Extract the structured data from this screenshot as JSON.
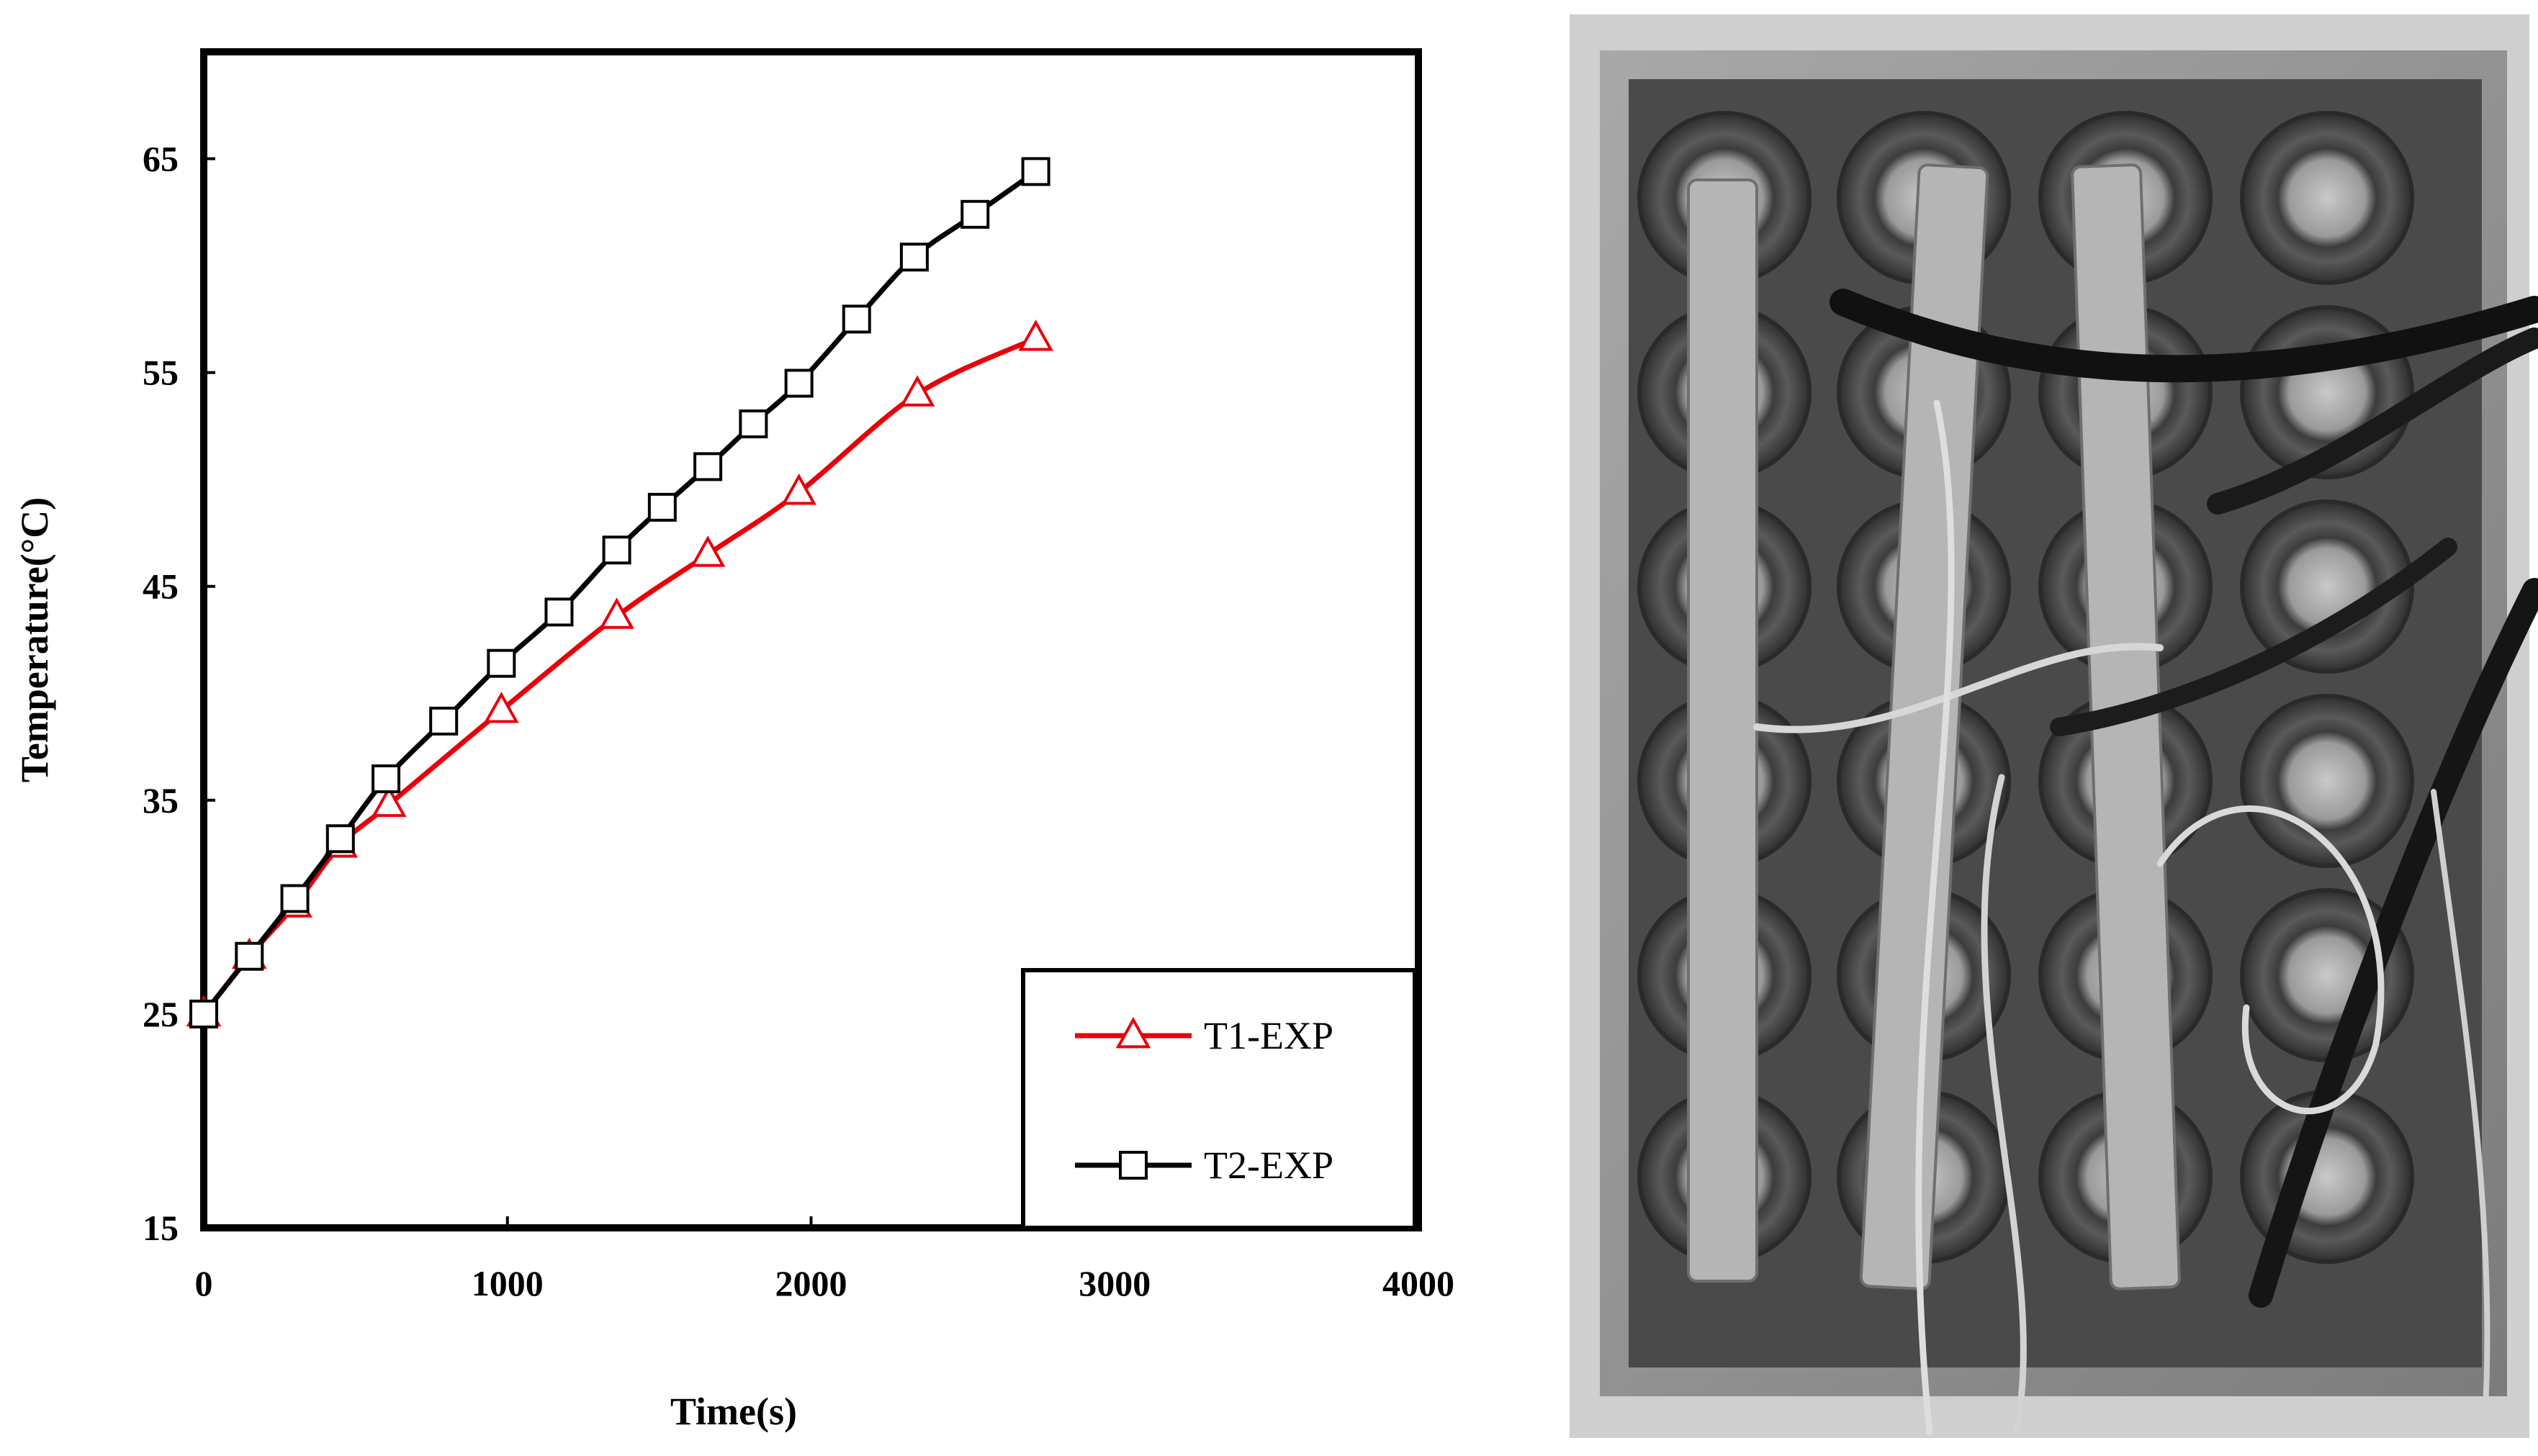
{
  "chart_data": {
    "type": "line",
    "title": "",
    "xlabel": "Time(s)",
    "ylabel": "Temperature(°C)",
    "xlim": [
      0,
      4000
    ],
    "ylim": [
      15,
      70
    ],
    "xticks": [
      0,
      1000,
      2000,
      3000,
      4000
    ],
    "xtick_labels": [
      "0",
      "1000",
      "2000",
      "3000",
      "4000"
    ],
    "yticks": [
      15,
      25,
      35,
      45,
      55,
      65
    ],
    "ytick_labels": [
      "15",
      "25",
      "35",
      "45",
      "55",
      "65"
    ],
    "grid": false,
    "legend_position": "bottom-right",
    "series": [
      {
        "name": "T1-EXP",
        "color": "#e8000b",
        "marker": "triangle-open",
        "x": [
          0,
          150,
          300,
          450,
          610,
          980,
          1360,
          1660,
          1960,
          2350,
          2740
        ],
        "y": [
          25.0,
          27.7,
          30.1,
          32.9,
          34.8,
          39.2,
          43.6,
          46.5,
          49.4,
          54.0,
          56.6
        ]
      },
      {
        "name": "T2-EXP",
        "color": "#000000",
        "marker": "square-open",
        "x": [
          0,
          150,
          300,
          450,
          600,
          790,
          980,
          1170,
          1360,
          1510,
          1660,
          1810,
          1960,
          2150,
          2340,
          2540,
          2740
        ],
        "y": [
          25.0,
          27.7,
          30.4,
          33.2,
          36.0,
          38.7,
          41.4,
          43.8,
          46.7,
          48.7,
          50.6,
          52.6,
          54.5,
          57.5,
          60.4,
          62.4,
          64.4
        ]
      }
    ]
  },
  "photo": {
    "icon": "battery-pack-photo",
    "tone": "#8a8a8a"
  }
}
